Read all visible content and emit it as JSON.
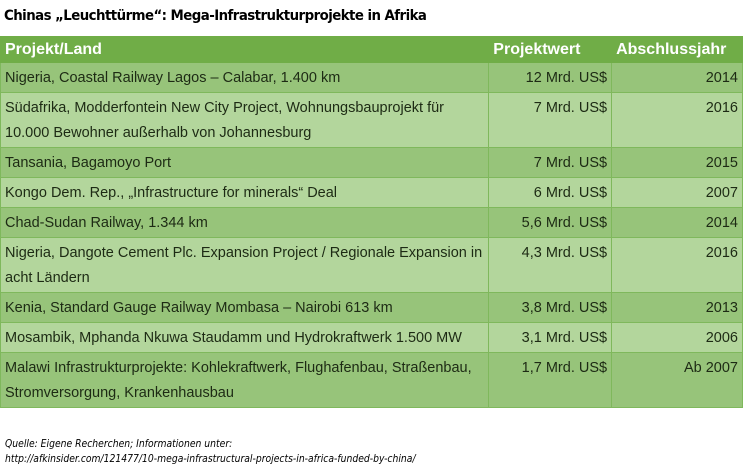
{
  "title": "Chinas „Leuchttürme“: Mega-Infrastrukturprojekte in Afrika",
  "colors": {
    "header": "#70ad47",
    "row_dark": "#97c47a",
    "row_light": "#b3d69c"
  },
  "table": {
    "headers": [
      "Projekt/Land",
      "Projektwert",
      "Abschlussjahr"
    ],
    "rows": [
      {
        "project": "Nigeria, Coastal Railway Lagos – Calabar, 1.400 km",
        "value": "12 Mrd. US$",
        "year": "2014"
      },
      {
        "project": "Südafrika, Modderfontein New City Project, Wohnungsbauprojekt für 10.000 Bewohner außerhalb von Johannesburg",
        "value": "7 Mrd. US$",
        "year": "2016"
      },
      {
        "project": "Tansania,  Bagamoyo Port",
        "value": "7 Mrd. US$",
        "year": "2015"
      },
      {
        "project": "Kongo Dem. Rep., „Infrastructure  for minerals“ Deal",
        "value": "6 Mrd. US$",
        "year": "2007"
      },
      {
        "project": "Chad-Sudan Railway, 1.344 km",
        "value": "5,6 Mrd. US$",
        "year": "2014"
      },
      {
        "project": "Nigeria, Dangote Cement Plc. Expansion Project / Regionale Expansion in acht Ländern",
        "value": "4,3 Mrd. US$",
        "year": "2016"
      },
      {
        "project": "Kenia, Standard Gauge Railway Mombasa – Nairobi 613 km",
        "value": "3,8 Mrd. US$",
        "year": "2013"
      },
      {
        "project": "Mosambik, Mphanda Nkuwa  Staudamm und Hydrokraftwerk  1.500 MW",
        "value": "3,1 Mrd. US$",
        "year": "2006"
      },
      {
        "project": "Malawi Infrastrukturprojekte:  Kohlekraftwerk, Flughafenbau, Straßenbau, Stromversorgung,  Krankenhausbau",
        "value": "1,7 Mrd. US$",
        "year": "Ab 2007"
      }
    ]
  },
  "source": {
    "line1": "Quelle: Eigene Recherchen; Informationen unter:",
    "line2": "http://afkinsider.com/121477/10-mega-infrastructural-projects-in-africa-funded-by-china/"
  }
}
